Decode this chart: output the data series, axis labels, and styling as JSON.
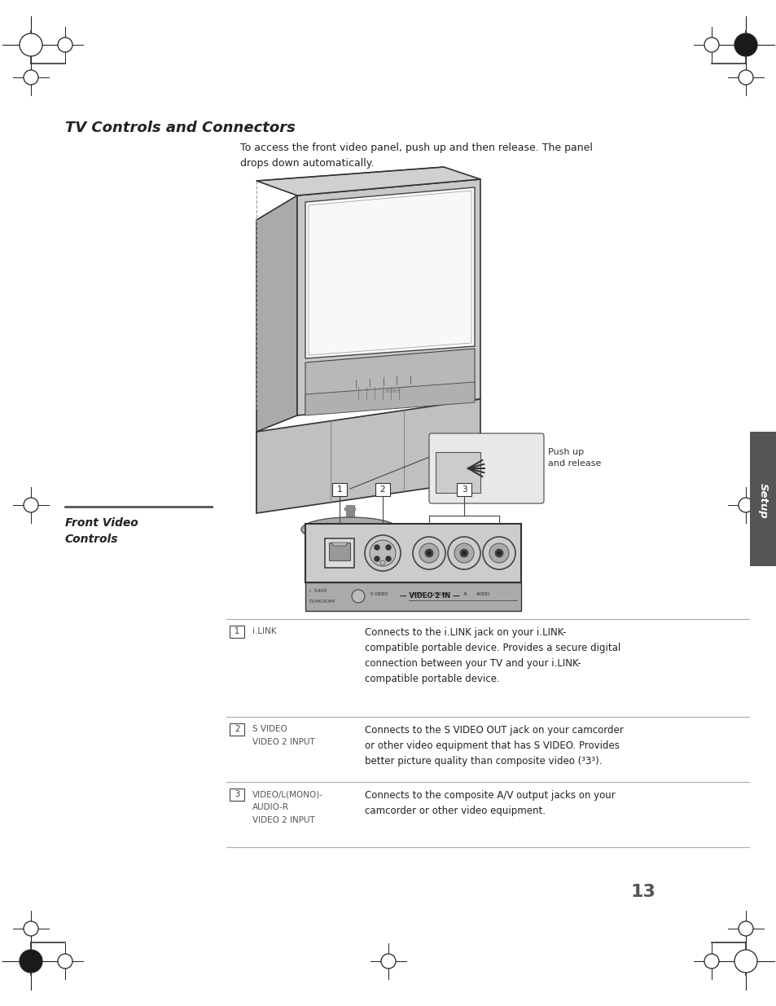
{
  "page_width": 9.54,
  "page_height": 12.35,
  "bg_color": "#ffffff",
  "title": "TV Controls and Connectors",
  "title_fontsize": 13,
  "intro_text": "To access the front video panel, push up and then release. The panel\ndrops down automatically.",
  "section_title": "Front Video\nControls",
  "page_number": "13",
  "items": [
    {
      "num": "1",
      "label": "i.LINK",
      "label2": "",
      "label3": "",
      "desc": "Connects to the i.LINK jack on your i.LINK-\ncompatible portable device. Provides a secure digital\nconnection between your TV and your i.LINK-\ncompatible portable device."
    },
    {
      "num": "2",
      "label": "S VIDEO",
      "label2": "VIDEO 2 INPUT",
      "label3": "",
      "desc": "Connects to the S VIDEO OUT jack on your camcorder\nor other video equipment that has S VIDEO. Provides\nbetter picture quality than composite video (³3³)."
    },
    {
      "num": "3",
      "label": "VIDEO/L(MONO)-",
      "label2": "AUDIO-R",
      "label3": "VIDEO 2 INPUT",
      "desc": "Connects to the composite A/V output jacks on your\ncamcorder or other video equipment."
    }
  ]
}
